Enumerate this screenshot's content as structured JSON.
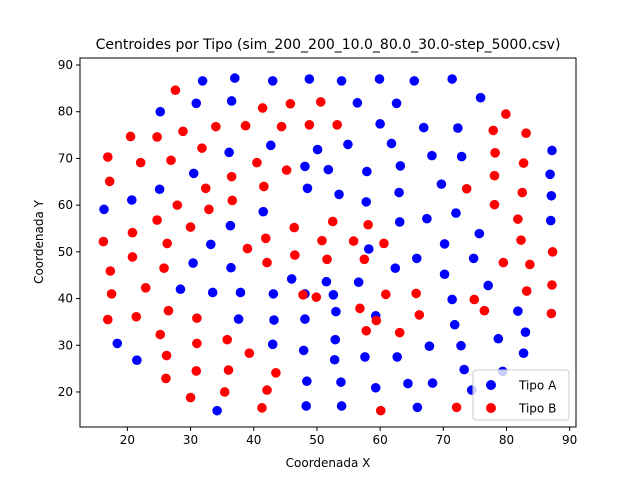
{
  "chart_data": {
    "type": "scatter",
    "title": "Centroides por Tipo (sim_200_200_10.0_80.0_30.0-step_5000.csv)",
    "xlabel": "Coordenada X",
    "ylabel": "Coordenada Y",
    "xlim": [
      12.5,
      91
    ],
    "ylim": [
      12.5,
      91.5
    ],
    "xticks": [
      20,
      30,
      40,
      50,
      60,
      70,
      80,
      90
    ],
    "yticks": [
      20,
      30,
      40,
      50,
      60,
      70,
      80,
      90
    ],
    "grid": false,
    "legend_position": "lower-right",
    "series": [
      {
        "name": "Tipo A",
        "color": "#0000ff",
        "points": [
          [
            31.9,
            86.6
          ],
          [
            37.0,
            87.2
          ],
          [
            43.0,
            86.6
          ],
          [
            48.8,
            87.0
          ],
          [
            53.9,
            86.6
          ],
          [
            59.9,
            87.0
          ],
          [
            65.4,
            86.6
          ],
          [
            71.4,
            87.0
          ],
          [
            25.2,
            80.0
          ],
          [
            30.9,
            81.8
          ],
          [
            36.5,
            82.3
          ],
          [
            56.4,
            81.9
          ],
          [
            62.6,
            81.8
          ],
          [
            75.9,
            83.0
          ],
          [
            42.7,
            72.8
          ],
          [
            50.1,
            71.9
          ],
          [
            54.9,
            73.0
          ],
          [
            60.0,
            77.4
          ],
          [
            61.8,
            73.2
          ],
          [
            66.9,
            76.6
          ],
          [
            72.3,
            76.5
          ],
          [
            30.5,
            66.8
          ],
          [
            36.1,
            71.3
          ],
          [
            48.1,
            68.3
          ],
          [
            51.8,
            67.6
          ],
          [
            57.9,
            67.2
          ],
          [
            63.2,
            68.4
          ],
          [
            68.2,
            70.6
          ],
          [
            72.9,
            70.4
          ],
          [
            87.2,
            71.7
          ],
          [
            16.3,
            59.1
          ],
          [
            20.7,
            61.1
          ],
          [
            25.1,
            63.4
          ],
          [
            41.5,
            58.6
          ],
          [
            48.5,
            63.6
          ],
          [
            53.5,
            62.3
          ],
          [
            57.8,
            60.7
          ],
          [
            63.0,
            62.7
          ],
          [
            69.7,
            64.5
          ],
          [
            72.0,
            58.3
          ],
          [
            86.9,
            66.6
          ],
          [
            87.1,
            62.0
          ],
          [
            33.2,
            51.6
          ],
          [
            36.3,
            55.6
          ],
          [
            58.2,
            50.6
          ],
          [
            63.1,
            56.4
          ],
          [
            67.4,
            57.1
          ],
          [
            70.2,
            51.7
          ],
          [
            75.7,
            53.9
          ],
          [
            87.0,
            56.7
          ],
          [
            30.4,
            47.6
          ],
          [
            36.4,
            46.6
          ],
          [
            46.0,
            44.2
          ],
          [
            51.5,
            43.6
          ],
          [
            56.6,
            43.5
          ],
          [
            62.4,
            46.5
          ],
          [
            65.8,
            48.6
          ],
          [
            70.2,
            45.2
          ],
          [
            74.8,
            48.6
          ],
          [
            28.4,
            42.0
          ],
          [
            33.5,
            41.3
          ],
          [
            37.9,
            41.3
          ],
          [
            43.1,
            41.0
          ],
          [
            48.1,
            41.0
          ],
          [
            52.6,
            40.8
          ],
          [
            71.4,
            39.8
          ],
          [
            77.1,
            42.8
          ],
          [
            37.6,
            35.6
          ],
          [
            43.2,
            35.4
          ],
          [
            48.1,
            35.6
          ],
          [
            53.0,
            37.2
          ],
          [
            59.3,
            36.3
          ],
          [
            71.8,
            34.4
          ],
          [
            81.8,
            37.3
          ],
          [
            18.4,
            30.4
          ],
          [
            43.0,
            30.2
          ],
          [
            47.9,
            28.9
          ],
          [
            52.9,
            31.2
          ],
          [
            57.6,
            27.5
          ],
          [
            62.7,
            27.5
          ],
          [
            67.8,
            29.8
          ],
          [
            72.8,
            29.9
          ],
          [
            78.7,
            31.4
          ],
          [
            83.0,
            32.8
          ],
          [
            82.7,
            28.3
          ],
          [
            21.5,
            26.8
          ],
          [
            48.4,
            22.3
          ],
          [
            52.8,
            26.9
          ],
          [
            53.8,
            22.1
          ],
          [
            59.3,
            20.9
          ],
          [
            64.4,
            21.8
          ],
          [
            68.3,
            21.9
          ],
          [
            73.3,
            24.8
          ],
          [
            74.5,
            20.4
          ],
          [
            79.4,
            24.4
          ],
          [
            34.2,
            16.0
          ],
          [
            48.3,
            17.0
          ],
          [
            53.9,
            17.0
          ],
          [
            65.9,
            16.7
          ]
        ]
      },
      {
        "name": "Tipo B",
        "color": "#ff0000",
        "points": [
          [
            27.6,
            84.6
          ],
          [
            41.4,
            80.8
          ],
          [
            45.8,
            81.7
          ],
          [
            50.6,
            82.1
          ],
          [
            79.9,
            79.5
          ],
          [
            20.5,
            74.7
          ],
          [
            24.7,
            74.6
          ],
          [
            28.8,
            75.8
          ],
          [
            34.0,
            76.8
          ],
          [
            38.7,
            77.0
          ],
          [
            44.4,
            76.8
          ],
          [
            48.8,
            77.2
          ],
          [
            53.2,
            77.2
          ],
          [
            77.9,
            76.0
          ],
          [
            83.1,
            75.4
          ],
          [
            16.9,
            70.3
          ],
          [
            22.1,
            69.1
          ],
          [
            26.9,
            69.6
          ],
          [
            31.8,
            72.2
          ],
          [
            40.5,
            69.1
          ],
          [
            45.2,
            67.5
          ],
          [
            78.2,
            71.2
          ],
          [
            82.7,
            69.0
          ],
          [
            17.2,
            65.1
          ],
          [
            32.4,
            63.6
          ],
          [
            36.5,
            66.1
          ],
          [
            41.6,
            64.0
          ],
          [
            73.7,
            63.5
          ],
          [
            78.1,
            66.3
          ],
          [
            82.5,
            62.7
          ],
          [
            27.9,
            60.0
          ],
          [
            32.9,
            59.1
          ],
          [
            36.6,
            61.0
          ],
          [
            24.7,
            56.8
          ],
          [
            30.0,
            55.3
          ],
          [
            46.4,
            55.2
          ],
          [
            52.5,
            56.5
          ],
          [
            58.1,
            55.8
          ],
          [
            78.1,
            60.1
          ],
          [
            81.8,
            57.0
          ],
          [
            16.2,
            52.2
          ],
          [
            20.8,
            54.1
          ],
          [
            26.3,
            51.8
          ],
          [
            39.0,
            50.7
          ],
          [
            41.9,
            52.9
          ],
          [
            50.8,
            52.4
          ],
          [
            55.8,
            52.3
          ],
          [
            60.6,
            51.8
          ],
          [
            82.3,
            52.5
          ],
          [
            87.3,
            50.0
          ],
          [
            17.3,
            45.9
          ],
          [
            20.8,
            48.9
          ],
          [
            25.8,
            46.5
          ],
          [
            42.1,
            47.7
          ],
          [
            46.5,
            49.3
          ],
          [
            51.6,
            48.4
          ],
          [
            57.5,
            48.4
          ],
          [
            79.5,
            47.7
          ],
          [
            83.7,
            47.3
          ],
          [
            17.5,
            41.0
          ],
          [
            22.9,
            42.3
          ],
          [
            47.8,
            40.8
          ],
          [
            49.9,
            40.3
          ],
          [
            56.8,
            37.9
          ],
          [
            60.9,
            40.9
          ],
          [
            65.7,
            41.1
          ],
          [
            74.9,
            39.8
          ],
          [
            83.2,
            41.6
          ],
          [
            87.2,
            42.9
          ],
          [
            16.9,
            35.5
          ],
          [
            21.4,
            36.1
          ],
          [
            26.5,
            37.4
          ],
          [
            31.0,
            35.8
          ],
          [
            59.4,
            35.3
          ],
          [
            66.2,
            36.5
          ],
          [
            76.5,
            37.4
          ],
          [
            87.1,
            36.8
          ],
          [
            25.2,
            32.3
          ],
          [
            31.0,
            30.4
          ],
          [
            35.8,
            31.2
          ],
          [
            57.8,
            33.1
          ],
          [
            63.1,
            32.7
          ],
          [
            26.2,
            27.8
          ],
          [
            30.9,
            24.5
          ],
          [
            36.0,
            24.7
          ],
          [
            39.3,
            28.3
          ],
          [
            43.5,
            24.1
          ],
          [
            26.1,
            22.9
          ],
          [
            30.0,
            18.8
          ],
          [
            35.4,
            20.0
          ],
          [
            42.1,
            20.4
          ],
          [
            41.3,
            16.6
          ],
          [
            60.1,
            16.0
          ],
          [
            72.1,
            16.7
          ]
        ]
      }
    ]
  }
}
